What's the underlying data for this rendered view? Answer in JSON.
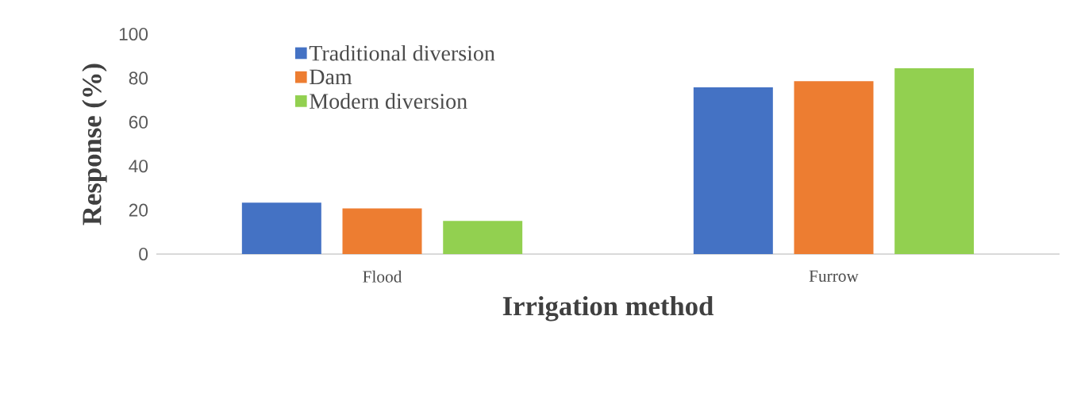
{
  "chart_data": {
    "type": "bar",
    "xlabel": "Irrigation method",
    "ylabel": "Response (%)",
    "categories": [
      "Flood",
      "Furrow"
    ],
    "series": [
      {
        "name": "Traditional diversion",
        "color": "#4472c4",
        "values": [
          23.4,
          75.8
        ]
      },
      {
        "name": "Dam",
        "color": "#ed7d31",
        "values": [
          20.8,
          78.6
        ]
      },
      {
        "name": "Modern diversion",
        "color": "#92d050",
        "values": [
          15.1,
          84.6
        ]
      }
    ],
    "ylim": [
      0,
      100
    ],
    "yticks": [
      0,
      20,
      40,
      60,
      80,
      100
    ],
    "legend": "top left"
  }
}
